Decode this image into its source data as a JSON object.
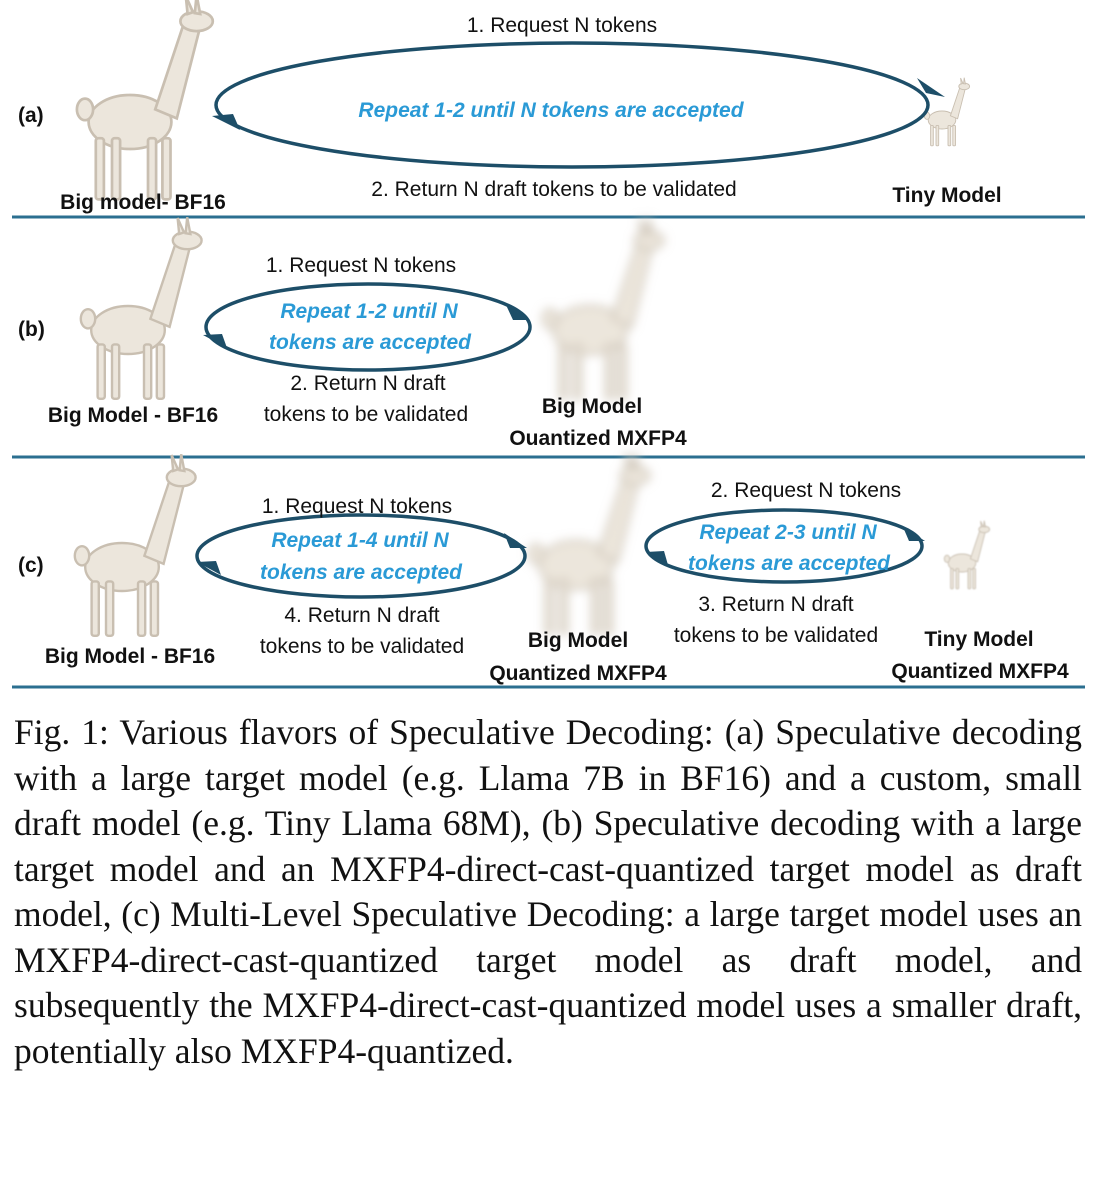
{
  "colors": {
    "arrow": "#1d4e68",
    "divider": "#2b6f90",
    "repeat_text": "#2a9ad6",
    "llama_fur": "#ece6dc",
    "llama_shade": "#c9bfb1"
  },
  "icons": {
    "llama": "llama-icon",
    "blurred_llama": "blurred-llama-icon",
    "arrow": "arrowhead-icon"
  },
  "panel_a": {
    "tag": "(a)",
    "request": "1. Request N tokens",
    "repeat": "Repeat 1-2 until N tokens are accepted",
    "return": "2. Return N draft tokens to be validated",
    "big_model": "Big model- BF16",
    "tiny_model": "Tiny Model"
  },
  "panel_b": {
    "tag": "(b)",
    "request": "1. Request N tokens",
    "repeat_line1": "Repeat 1-2 until N",
    "repeat_line2": "tokens are accepted",
    "return_line1": "2. Return N draft",
    "return_line2": "tokens to be validated",
    "big_model": "Big Model - BF16",
    "draft_line1": "Big Model",
    "draft_line2": "Ouantized MXFP4"
  },
  "panel_c": {
    "tag": "(c)",
    "request1": "1. Request N tokens",
    "repeat1_line1": "Repeat 1-4 until N",
    "repeat1_line2": "tokens are accepted",
    "return1_line1": "4. Return N draft",
    "return1_line2": "tokens to be validated",
    "request2": "2. Request N tokens",
    "repeat2_line1": "Repeat 2-3 until N",
    "repeat2_line2": "tokens are accepted",
    "return2_line1": "3. Return N draft",
    "return2_line2": "tokens to be validated",
    "big_model": "Big Model - BF16",
    "mid_line1": "Big Model",
    "mid_line2": "Quantized MXFP4",
    "tiny_line1": "Tiny Model",
    "tiny_line2": "Quantized MXFP4"
  },
  "caption": "Fig. 1: Various flavors of Speculative Decoding: (a) Speculative decoding with a large target model (e.g. Llama 7B in BF16) and a custom, small draft model (e.g. Tiny Llama 68M), (b) Speculative decoding with a large target model and an MXFP4-direct-cast-quantized target model as draft model, (c) Multi-Level Speculative Decoding: a large target model uses an MXFP4-direct-cast-quantized target model as draft model, and subsequently the MXFP4-direct-cast-quantized model uses a smaller draft, potentially also MXFP4-quantized."
}
